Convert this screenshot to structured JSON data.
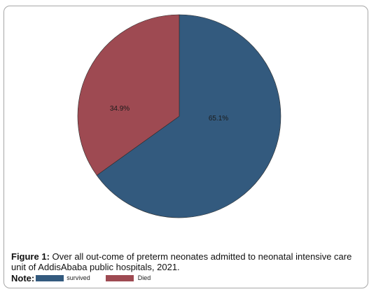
{
  "chart_data": {
    "type": "pie",
    "slices": [
      {
        "label": "survived",
        "value": 65.1,
        "value_label": "65.1%",
        "color": "#335a7e"
      },
      {
        "label": "Died",
        "value": 34.9,
        "value_label": "34.9%",
        "color": "#9e4a52"
      }
    ],
    "start_angle": "12 o'clock",
    "direction": "clockwise",
    "legend_position": "bottom"
  },
  "caption": {
    "figure_label": "Figure   1:",
    "text": "Over all out-come of preterm neonates admitted to neonatal intensive care unit of AddisAbaba public hospitals, 2021."
  },
  "legend": {
    "note_label": "Note:",
    "items": [
      {
        "label": "survived",
        "color": "#335a7e"
      },
      {
        "label": "Died",
        "color": "#9e4a52"
      }
    ]
  }
}
